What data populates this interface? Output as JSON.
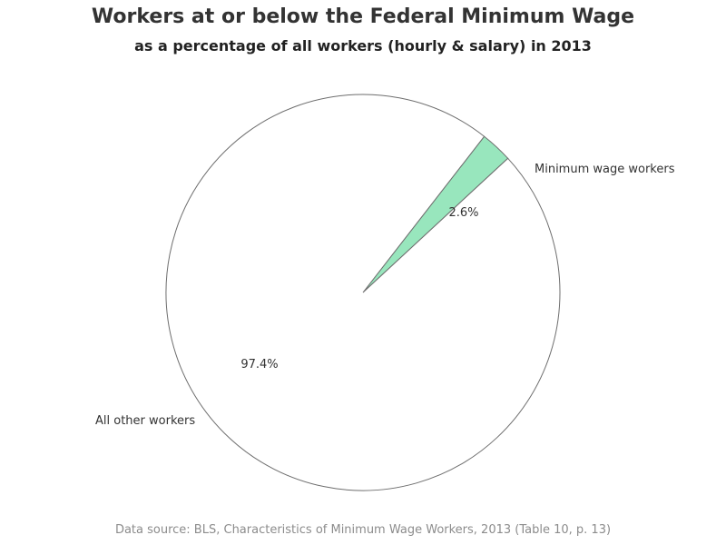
{
  "chart_data": {
    "type": "pie",
    "title": "Workers at or below the Federal Minimum Wage",
    "subtitle": "as a percentage of all workers (hourly & salary) in 2013",
    "slices": [
      {
        "label": "Minimum wage workers",
        "value": 2.6,
        "value_label": "2.6%",
        "color": "#98e6bd"
      },
      {
        "label": "All other workers",
        "value": 97.4,
        "value_label": "97.4%",
        "color": "#ffffff"
      }
    ],
    "footnote": "Data source: BLS, Characteristics of Minimum Wage Workers, 2013 (Table 10, p. 13)"
  }
}
